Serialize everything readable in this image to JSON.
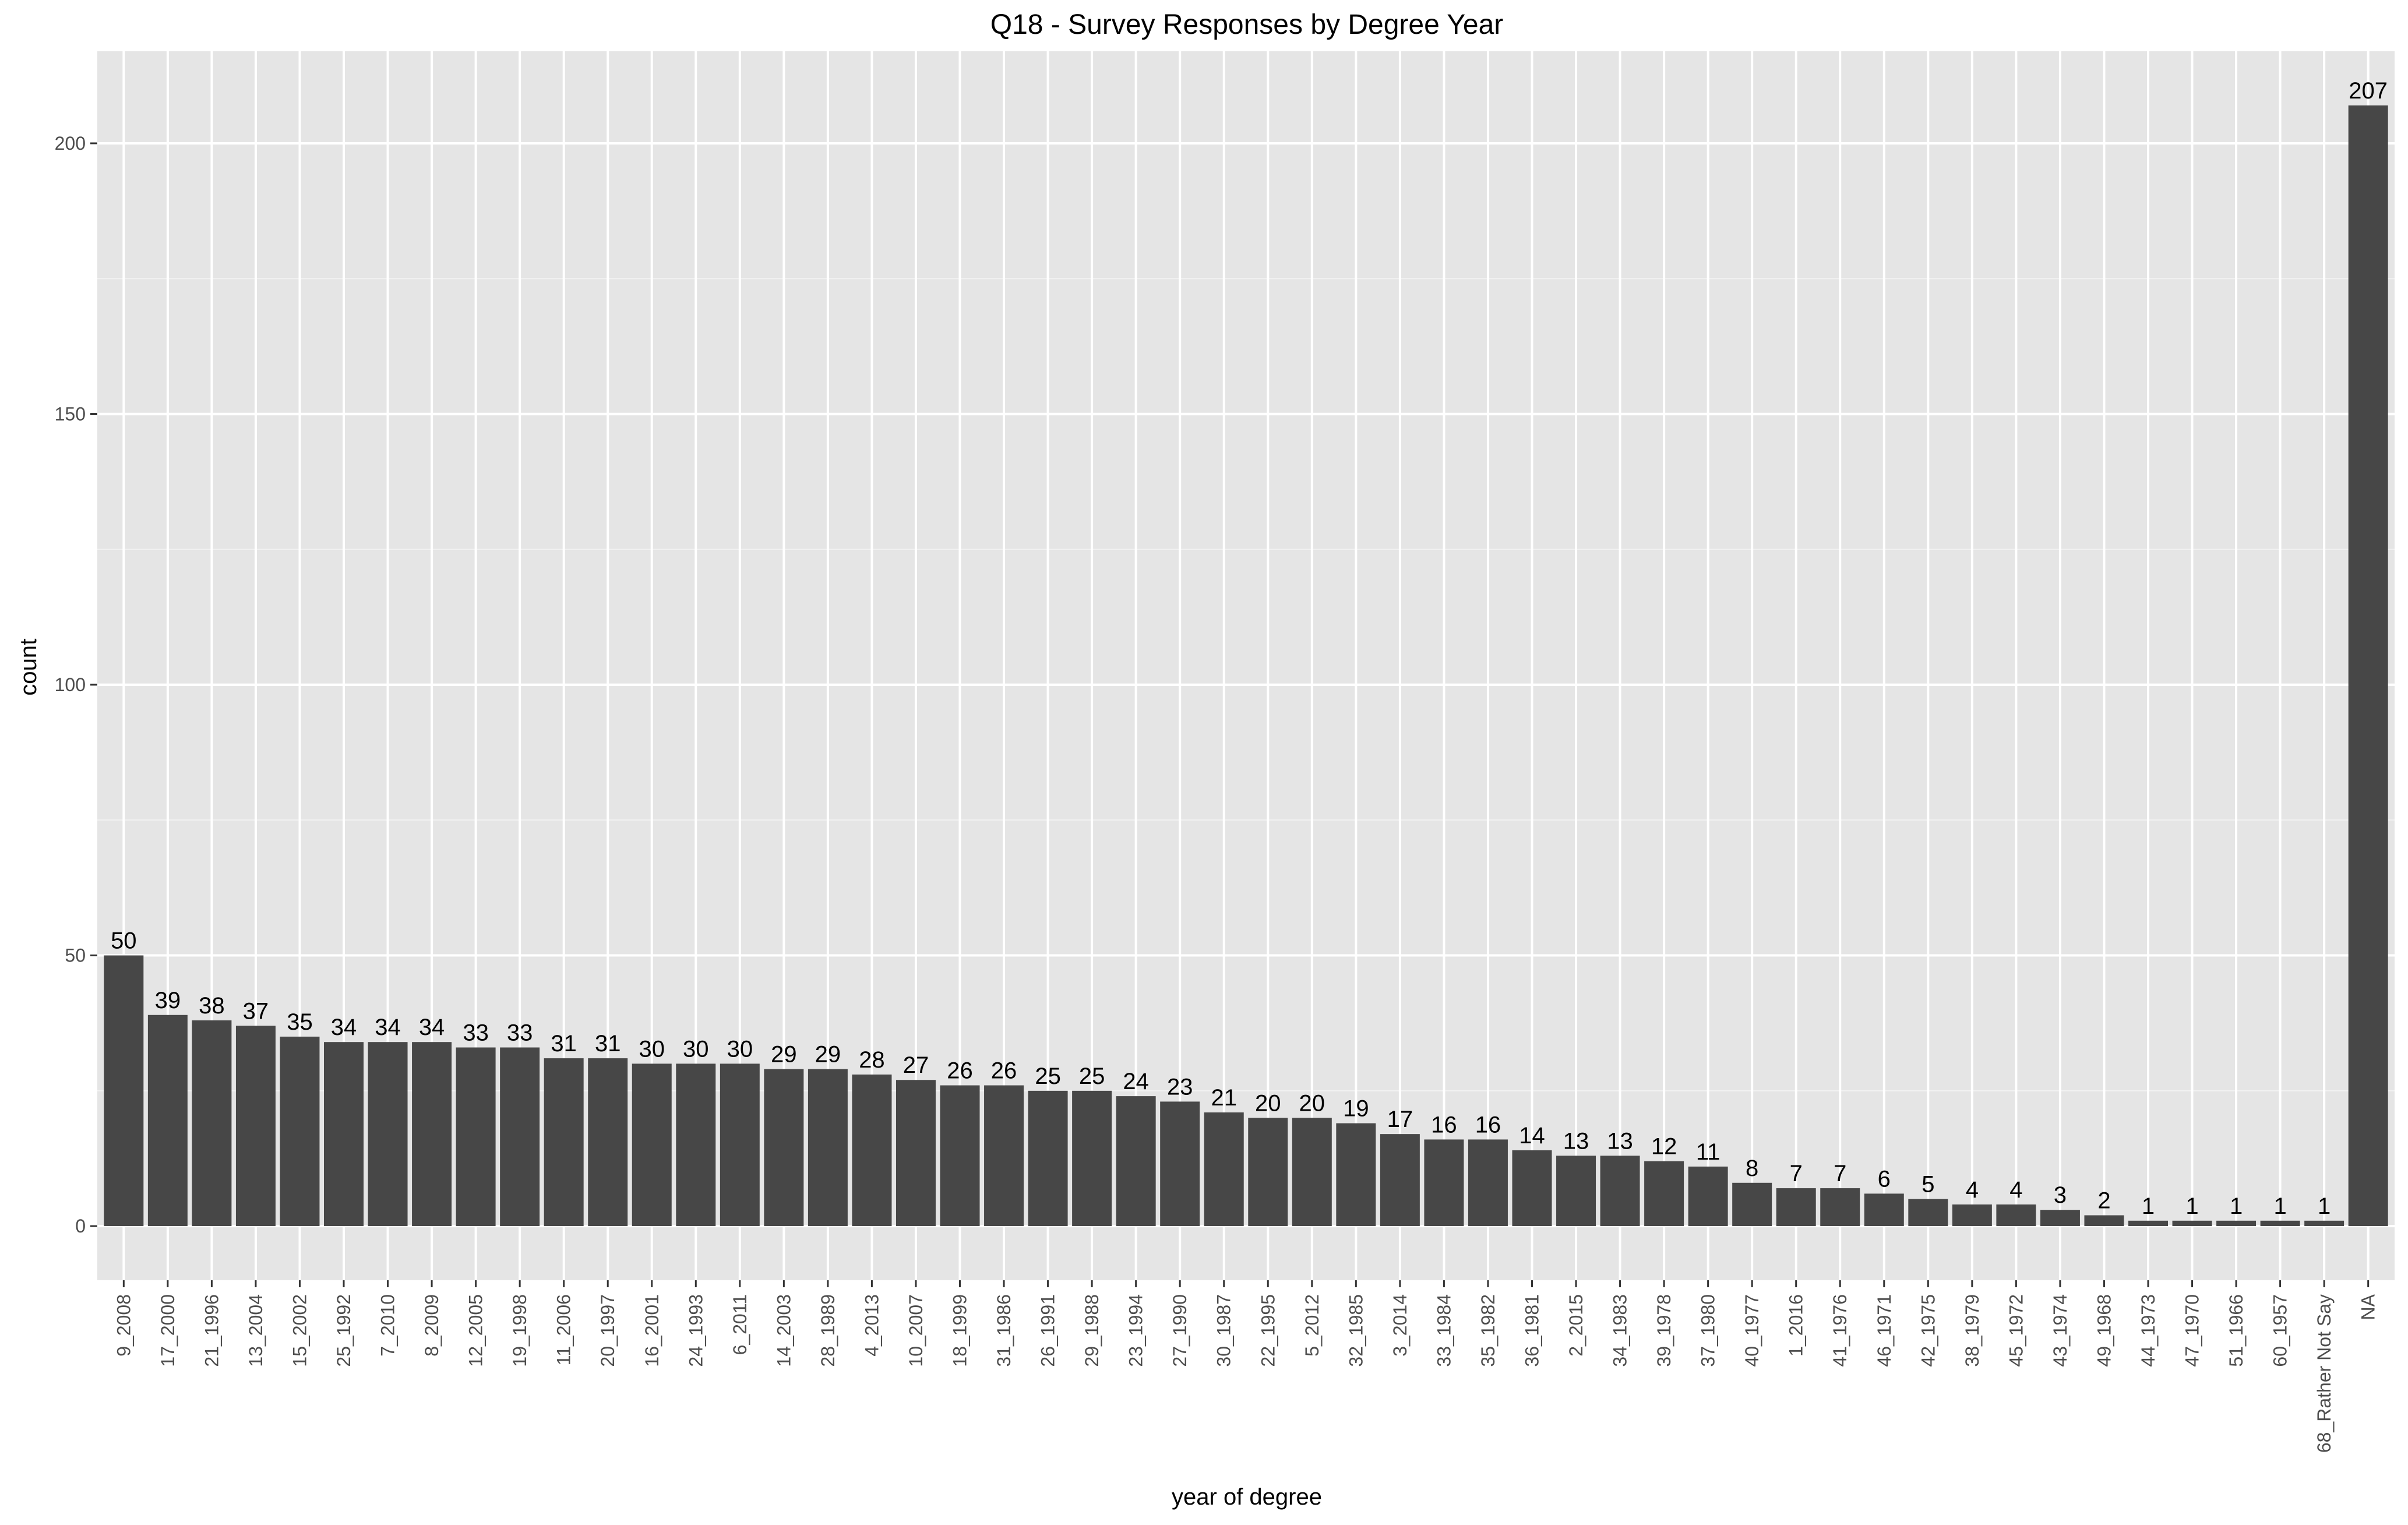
{
  "chart_data": {
    "type": "bar",
    "title": "Q18 - Survey Responses by Degree Year",
    "xlabel": "year of degree",
    "ylabel": "count",
    "ylim": [
      -10,
      217
    ],
    "yticks": [
      0,
      50,
      100,
      150,
      200
    ],
    "grid": true,
    "categories": [
      "9_2008",
      "17_2000",
      "21_1996",
      "13_2004",
      "15_2002",
      "25_1992",
      "7_2010",
      "8_2009",
      "12_2005",
      "19_1998",
      "11_2006",
      "20_1997",
      "16_2001",
      "24_1993",
      "6_2011",
      "14_2003",
      "28_1989",
      "4_2013",
      "10_2007",
      "18_1999",
      "31_1986",
      "26_1991",
      "29_1988",
      "23_1994",
      "27_1990",
      "30_1987",
      "22_1995",
      "5_2012",
      "32_1985",
      "3_2014",
      "33_1984",
      "35_1982",
      "36_1981",
      "2_2015",
      "34_1983",
      "39_1978",
      "37_1980",
      "40_1977",
      "1_2016",
      "41_1976",
      "46_1971",
      "42_1975",
      "38_1979",
      "45_1972",
      "43_1974",
      "49_1968",
      "44_1973",
      "47_1970",
      "51_1966",
      "60_1957",
      "68_Rather Not Say",
      "NA"
    ],
    "values": [
      50,
      39,
      38,
      37,
      35,
      34,
      34,
      34,
      33,
      33,
      31,
      31,
      30,
      30,
      30,
      29,
      29,
      28,
      27,
      26,
      26,
      25,
      25,
      24,
      23,
      21,
      20,
      20,
      19,
      17,
      16,
      16,
      14,
      13,
      13,
      12,
      11,
      8,
      7,
      7,
      6,
      5,
      4,
      4,
      3,
      2,
      1,
      1,
      1,
      1,
      1,
      207
    ],
    "colors": {
      "bar": "#474747",
      "panel": "#e5e5e5",
      "grid_major": "#ffffff",
      "grid_minor": "#f2f2f2",
      "text": "#000000",
      "tick_text": "#4d4d4d",
      "tick_mark": "#333333"
    }
  }
}
